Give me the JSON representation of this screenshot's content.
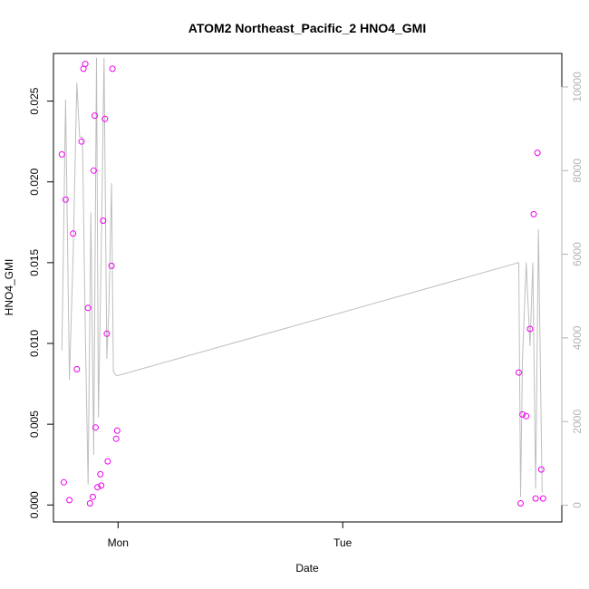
{
  "chart_data": {
    "type": "scatter",
    "title": "ATOM2 Northeast_Pacific_2 HNO4_GMI",
    "xlabel": "Date",
    "ylabel": "HNO4_GMI",
    "x_ticks": [
      {
        "x": 0,
        "label": "Mon"
      },
      {
        "x": 24,
        "label": "Tue"
      }
    ],
    "xlim": [
      -6.9,
      47.4
    ],
    "ylim": [
      -0.00105,
      0.02795
    ],
    "y_ticks": [
      0.0,
      0.005,
      0.01,
      0.015,
      0.02,
      0.025
    ],
    "y_tick_labels": [
      "0.000",
      "0.005",
      "0.010",
      "0.015",
      "0.020",
      "0.025"
    ],
    "y2lim": [
      -400,
      10800
    ],
    "y2_ticks": [
      0,
      2000,
      4000,
      6000,
      8000,
      10000
    ],
    "y2_tick_labels": [
      "0",
      "2000",
      "4000",
      "6000",
      "8000",
      "10000"
    ],
    "grid": false,
    "colors": {
      "points": "#ee00ee",
      "line": "#bebebe",
      "axis": "#000000",
      "right_axis": "#b3b3b3"
    },
    "series": [
      {
        "type": "scatter",
        "axis": "left",
        "x": [
          -6.0,
          -5.8,
          -5.6,
          -5.2,
          -4.8,
          -4.4,
          -3.9,
          -3.7,
          -3.5,
          -3.2,
          -3.0,
          -2.7,
          -2.6,
          -2.5,
          -2.4,
          -2.2,
          -1.9,
          -1.8,
          -1.6,
          -1.4,
          -1.2,
          -1.1,
          -0.7,
          -0.6,
          -0.2,
          -0.1,
          42.8,
          43.0,
          43.2,
          43.6,
          44.0,
          44.4,
          44.6,
          44.8,
          45.2,
          45.4
        ],
        "y": [
          0.0217,
          0.0014,
          0.0189,
          0.0003,
          0.0168,
          0.0084,
          0.0225,
          0.027,
          0.0273,
          0.0122,
          0.0001,
          0.0005,
          0.0207,
          0.0241,
          0.0048,
          0.0011,
          0.0019,
          0.0012,
          0.0176,
          0.0239,
          0.0106,
          0.0027,
          0.0148,
          0.027,
          0.0041,
          0.0046,
          0.0082,
          0.0001,
          0.0056,
          0.0055,
          0.0109,
          0.018,
          0.0004,
          0.0218,
          0.0022,
          0.0004
        ]
      },
      {
        "type": "line",
        "axis": "right",
        "x": [
          -6.0,
          -5.6,
          -5.2,
          -4.8,
          -4.4,
          -4.1,
          -3.8,
          -3.5,
          -3.2,
          -2.9,
          -2.6,
          -2.3,
          -2.1,
          -1.8,
          -1.5,
          -1.2,
          -1.0,
          -0.7,
          -0.5,
          -0.2,
          0.0,
          42.8,
          43.0,
          43.2,
          43.6,
          44.0,
          44.3,
          44.6,
          44.9,
          45.3
        ],
        "y": [
          3700,
          9700,
          3000,
          6000,
          10100,
          8800,
          8800,
          4200,
          500,
          7000,
          1200,
          10700,
          2100,
          6000,
          10700,
          3500,
          4600,
          7700,
          3200,
          3100,
          3100,
          5800,
          200,
          3500,
          5800,
          3800,
          5800,
          400,
          6600,
          300
        ]
      }
    ]
  }
}
